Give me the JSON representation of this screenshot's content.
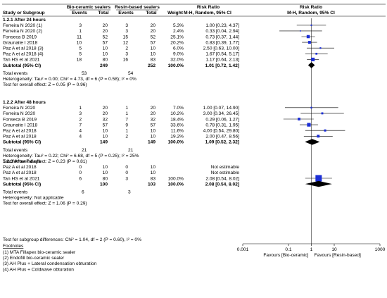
{
  "header": {
    "col_study": "Study or Subgroup",
    "group1": "Bio-ceramic sealers",
    "group2": "Resin-based sealers",
    "events": "Events",
    "total": "Total",
    "weight": "Weight",
    "rr_title": "Risk Ratio",
    "rr_method": "M-H, Random, 95% CI"
  },
  "subgroups": [
    {
      "title": "1.2.1 After 24 hours",
      "rows": [
        {
          "study": "Ferreira N 2020 (1)",
          "e1": "3",
          "n1": "20",
          "e2": "3",
          "n2": "20",
          "weight": "5.3%",
          "ci": "1.00 [0.23, 4.37]"
        },
        {
          "study": "Ferreira N 2020 (2)",
          "e1": "1",
          "n1": "20",
          "e2": "3",
          "n2": "20",
          "weight": "2.4%",
          "ci": "0.33 [0.04, 2.94]"
        },
        {
          "study": "Fonseca B 2019",
          "e1": "11",
          "n1": "52",
          "e2": "15",
          "n2": "52",
          "weight": "25.1%",
          "ci": "0.73 [0.37, 1.44]"
        },
        {
          "study": "Graunaite I 2018",
          "e1": "10",
          "n1": "57",
          "e2": "12",
          "n2": "57",
          "weight": "20.2%",
          "ci": "0.83 [0.39, 1.77]"
        },
        {
          "study": "Paz A et al 2018 (3)",
          "e1": "5",
          "n1": "10",
          "e2": "2",
          "n2": "10",
          "weight": "6.0%",
          "ci": "2.50 [0.63, 10.00]"
        },
        {
          "study": "Paz A et al 2018 (4)",
          "e1": "5",
          "n1": "10",
          "e2": "3",
          "n2": "10",
          "weight": "9.0%",
          "ci": "1.67 [0.54, 5.17]"
        },
        {
          "study": "Tan HS et al 2021",
          "e1": "18",
          "n1": "80",
          "e2": "16",
          "n2": "83",
          "weight": "32.0%",
          "ci": "1.17 [0.64, 2.13]"
        }
      ],
      "subtotal": {
        "label": "Subtotal (95% CI)",
        "n1": "249",
        "n2": "252",
        "weight": "100.0%",
        "ci": "1.01 [0.72, 1.42]"
      },
      "total_events": {
        "label": "Total events",
        "e1": "53",
        "e2": "54"
      },
      "heterogeneity": "Heterogeneity: Tau² = 0.00; Chi² = 4.73, df = 6 (P = 0.58); I² = 0%",
      "overall": "Test for overall effect: Z = 0.05 (P = 0.96)"
    },
    {
      "title": "1.2.2 After 48 hours",
      "rows": [
        {
          "study": "Ferreira N 2020",
          "e1": "1",
          "n1": "20",
          "e2": "1",
          "n2": "20",
          "weight": "7.0%",
          "ci": "1.00 [0.07, 14.90]"
        },
        {
          "study": "Ferreira N 2020",
          "e1": "3",
          "n1": "20",
          "e2": "1",
          "n2": "20",
          "weight": "10.2%",
          "ci": "3.00 [0.34, 26.45]"
        },
        {
          "study": "Fonseca B 2019",
          "e1": "2",
          "n1": "32",
          "e2": "7",
          "n2": "32",
          "weight": "18.4%",
          "ci": "0.29 [0.06, 1.27]"
        },
        {
          "study": "Graunaite I 2018",
          "e1": "7",
          "n1": "57",
          "e2": "9",
          "n2": "57",
          "weight": "33.6%",
          "ci": "0.78 [0.31, 1.95]"
        },
        {
          "study": "Paz A et al 2018",
          "e1": "4",
          "n1": "10",
          "e2": "1",
          "n2": "10",
          "weight": "11.6%",
          "ci": "4.00 [0.54, 29.80]"
        },
        {
          "study": "Paz A et al 2018",
          "e1": "4",
          "n1": "10",
          "e2": "2",
          "n2": "10",
          "weight": "19.2%",
          "ci": "2.00 [0.47, 8.56]"
        }
      ],
      "subtotal": {
        "label": "Subtotal (95% CI)",
        "n1": "149",
        "n2": "149",
        "weight": "100.0%",
        "ci": "1.09 [0.52, 2.32]"
      },
      "total_events": {
        "label": "Total events",
        "e1": "21",
        "e2": "21"
      },
      "heterogeneity": "Heterogeneity: Tau² = 0.22; Chi² = 6.68, df = 5 (P = 0.25); I² = 25%",
      "overall": "Test for overall effect: Z = 0.23 (P = 0.81)"
    },
    {
      "title": "1.2.3 After 7 days",
      "rows": [
        {
          "study": "Paz A et al 2018",
          "e1": "0",
          "n1": "10",
          "e2": "0",
          "n2": "10",
          "weight": "",
          "ci": "Not estimable"
        },
        {
          "study": "Paz A et al 2018",
          "e1": "0",
          "n1": "10",
          "e2": "0",
          "n2": "10",
          "weight": "",
          "ci": "Not estimable"
        },
        {
          "study": "Tan HS et al 2021",
          "e1": "6",
          "n1": "80",
          "e2": "3",
          "n2": "83",
          "weight": "100.0%",
          "ci": "2.08 [0.54, 8.02]"
        }
      ],
      "subtotal": {
        "label": "Subtotal (95% CI)",
        "n1": "100",
        "n2": "103",
        "weight": "100.0%",
        "ci": "2.08 [0.54, 8.02]"
      },
      "total_events": {
        "label": "Total events",
        "e1": "6",
        "e2": "3"
      },
      "heterogeneity": "Heterogeneity: Not applicable",
      "overall": "Test for overall effect: Z = 1.06 (P = 0.29)"
    }
  ],
  "subgroup_test": "Test for subgroup differences: Chi² = 1.04, df = 2 (P = 0.60), I² = 0%",
  "footnotes": {
    "title": "Footnotes",
    "items": [
      "(1) MTA Fillapex bio-ceramic sealer",
      "(2) Endofill bio-ceramic sealer",
      "(3) AH Plus + Lateral condensation obturation",
      "(4) AH Plus + Coldwave obturation"
    ]
  },
  "chart_data": {
    "type": "forest",
    "x_scale": "log",
    "xlim": [
      0.001,
      1000
    ],
    "ticks": [
      "0.001",
      "0.1",
      "1",
      "10",
      "1000"
    ],
    "tick_values": [
      0.001,
      0.1,
      1,
      10,
      1000
    ],
    "favours_left": "Favours [Bio-ceramic]",
    "favours_right": "Favours [Resin-based]",
    "colors": {
      "study_marker": "#1c2fd6",
      "diamond": "#000000",
      "line": "#000000"
    },
    "studies": [
      {
        "group": 0,
        "rr": 1.0,
        "lo": 0.23,
        "hi": 4.37,
        "weight": 5.3
      },
      {
        "group": 0,
        "rr": 0.33,
        "lo": 0.04,
        "hi": 2.94,
        "weight": 2.4
      },
      {
        "group": 0,
        "rr": 0.73,
        "lo": 0.37,
        "hi": 1.44,
        "weight": 25.1
      },
      {
        "group": 0,
        "rr": 0.83,
        "lo": 0.39,
        "hi": 1.77,
        "weight": 20.2
      },
      {
        "group": 0,
        "rr": 2.5,
        "lo": 0.63,
        "hi": 10.0,
        "weight": 6.0
      },
      {
        "group": 0,
        "rr": 1.67,
        "lo": 0.54,
        "hi": 5.17,
        "weight": 9.0
      },
      {
        "group": 0,
        "rr": 1.17,
        "lo": 0.64,
        "hi": 2.13,
        "weight": 32.0
      },
      {
        "group": 1,
        "rr": 1.0,
        "lo": 0.07,
        "hi": 14.9,
        "weight": 7.0
      },
      {
        "group": 1,
        "rr": 3.0,
        "lo": 0.34,
        "hi": 26.45,
        "weight": 10.2
      },
      {
        "group": 1,
        "rr": 0.29,
        "lo": 0.06,
        "hi": 1.27,
        "weight": 18.4
      },
      {
        "group": 1,
        "rr": 0.78,
        "lo": 0.31,
        "hi": 1.95,
        "weight": 33.6
      },
      {
        "group": 1,
        "rr": 4.0,
        "lo": 0.54,
        "hi": 29.8,
        "weight": 11.6
      },
      {
        "group": 1,
        "rr": 2.0,
        "lo": 0.47,
        "hi": 8.56,
        "weight": 19.2
      },
      {
        "group": 2,
        "rr": null,
        "lo": null,
        "hi": null,
        "weight": null
      },
      {
        "group": 2,
        "rr": null,
        "lo": null,
        "hi": null,
        "weight": null
      },
      {
        "group": 2,
        "rr": 2.08,
        "lo": 0.54,
        "hi": 8.02,
        "weight": 100.0
      }
    ],
    "pooled": [
      {
        "group": 0,
        "rr": 1.01,
        "lo": 0.72,
        "hi": 1.42
      },
      {
        "group": 1,
        "rr": 1.09,
        "lo": 0.52,
        "hi": 2.32
      },
      {
        "group": 2,
        "rr": 2.08,
        "lo": 0.54,
        "hi": 8.02
      }
    ]
  }
}
